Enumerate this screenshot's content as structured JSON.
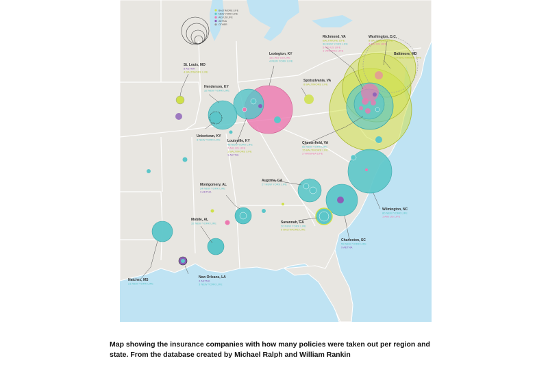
{
  "colors": {
    "baltimore_life": "#cfe04a",
    "new_york_life": "#5cc6c9",
    "aig_us_life": "#ec78b0",
    "aetna": "#8b5fb8",
    "other": "#b8b8b8",
    "land": "#e8e6e1",
    "water": "#bfe3f3"
  },
  "legend": {
    "items": [
      {
        "label": "BALTIMORE LIFE",
        "color": "#cfe04a"
      },
      {
        "label": "NEW YORK LIFE",
        "color": "#5cc6c9"
      },
      {
        "label": "AIG US LIFE",
        "color": "#ec78b0"
      },
      {
        "label": "AETNA",
        "color": "#8b5fb8"
      },
      {
        "label": "OTHER",
        "color": "#9a9a9a"
      }
    ]
  },
  "cities": [
    {
      "name": "St. Louis, MO",
      "lines": [
        {
          "text": "8 AETNA",
          "color": "#8b5fb8"
        },
        {
          "text": "4 BALTIMORE LIFE",
          "color": "#b7c63a"
        }
      ]
    },
    {
      "name": "Henderson, KY",
      "lines": [
        {
          "text": "32 NEW YORK LIFE",
          "color": "#5cc6c9"
        }
      ]
    },
    {
      "name": "Uniontown, KY",
      "lines": [
        {
          "text": "3 NEW YORK LIFE",
          "color": "#5cc6c9"
        }
      ]
    },
    {
      "name": "Lexington, KY",
      "lines": [
        {
          "text": "121 AIG US LIFE",
          "color": "#ec78b0"
        },
        {
          "text": "4 NEW YORK LIFE",
          "color": "#5cc6c9"
        }
      ]
    },
    {
      "name": "Louisville, KY",
      "lines": [
        {
          "text": "48 NEW YORK LIFE",
          "color": "#5cc6c9"
        },
        {
          "text": "7 AIG US LIFE",
          "color": "#ec78b0"
        },
        {
          "text": "1 BALTIMORE LIFE",
          "color": "#b7c63a"
        },
        {
          "text": "1 AETNA",
          "color": "#8b5fb8"
        }
      ]
    },
    {
      "name": "Spotsylvania, VA",
      "lines": [
        {
          "text": "8 BALTIMORE LIFE",
          "color": "#b7c63a"
        }
      ]
    },
    {
      "name": "Richmond, VA",
      "lines": [
        {
          "text": "BALTIMORE LIFE",
          "color": "#b7c63a"
        },
        {
          "text": "36 NEW YORK LIFE",
          "color": "#5cc6c9"
        },
        {
          "text": "5 AIG US LIFE",
          "color": "#ec78b0"
        },
        {
          "text": "1 VIRGINIA LIFE",
          "color": "#ec78b0"
        }
      ]
    },
    {
      "name": "Washington, D.C.",
      "lines": [
        {
          "text": "8 BALTIMORE LIFE",
          "color": "#b7c63a"
        },
        {
          "text": "4 AIG US LIFE",
          "color": "#ec78b0"
        }
      ]
    },
    {
      "name": "Baltimore, MD",
      "lines": [
        {
          "text": "124 BALTIMORE LIFE",
          "color": "#b7c63a"
        }
      ]
    },
    {
      "name": "Chesterfield, VA",
      "lines": [
        {
          "text": "82 NEW YORK LIFE",
          "color": "#5cc6c9"
        },
        {
          "text": "15 BALTIMORE LIFE",
          "color": "#b7c63a"
        },
        {
          "text": "3 VIRGINIA LIFE",
          "color": "#ec78b0"
        }
      ]
    },
    {
      "name": "Augusta, GA",
      "lines": [
        {
          "text": "27 NEW YORK LIFE",
          "color": "#5cc6c9"
        }
      ]
    },
    {
      "name": "Montgomery, AL",
      "lines": [
        {
          "text": "24 NEW YORK LIFE",
          "color": "#5cc6c9"
        },
        {
          "text": "3 AETNA",
          "color": "#8b5fb8"
        }
      ]
    },
    {
      "name": "Mobile, AL",
      "lines": [
        {
          "text": "32 NEW YORK LIFE",
          "color": "#5cc6c9"
        }
      ]
    },
    {
      "name": "Savannah, GA",
      "lines": [
        {
          "text": "20 NEW YORK LIFE",
          "color": "#5cc6c9"
        },
        {
          "text": "6 BALTIMORE LIFE",
          "color": "#b7c63a"
        }
      ]
    },
    {
      "name": "Charleston, SC",
      "lines": [
        {
          "text": "59 NEW YORK LIFE",
          "color": "#5cc6c9"
        },
        {
          "text": "9 AETNA",
          "color": "#8b5fb8"
        }
      ]
    },
    {
      "name": "Wilmington, NC",
      "lines": [
        {
          "text": "80 NEW YORK LIFE",
          "color": "#5cc6c9"
        },
        {
          "text": "1 AIG US LIFE",
          "color": "#ec78b0"
        }
      ]
    },
    {
      "name": "Natchez, MS",
      "lines": [
        {
          "text": "21 NEW YORK LIFE",
          "color": "#5cc6c9"
        }
      ]
    },
    {
      "name": "New Orleans, LA",
      "lines": [
        {
          "text": "4 AETNA",
          "color": "#8b5fb8"
        },
        {
          "text": "3 NEW YORK LIFE",
          "color": "#5cc6c9"
        }
      ]
    }
  ],
  "caption": {
    "line1": "Map showing the insurance companies with how many policies were taken out per region and",
    "line2": "state. From the database created by Michael Ralph and William Rankin"
  }
}
